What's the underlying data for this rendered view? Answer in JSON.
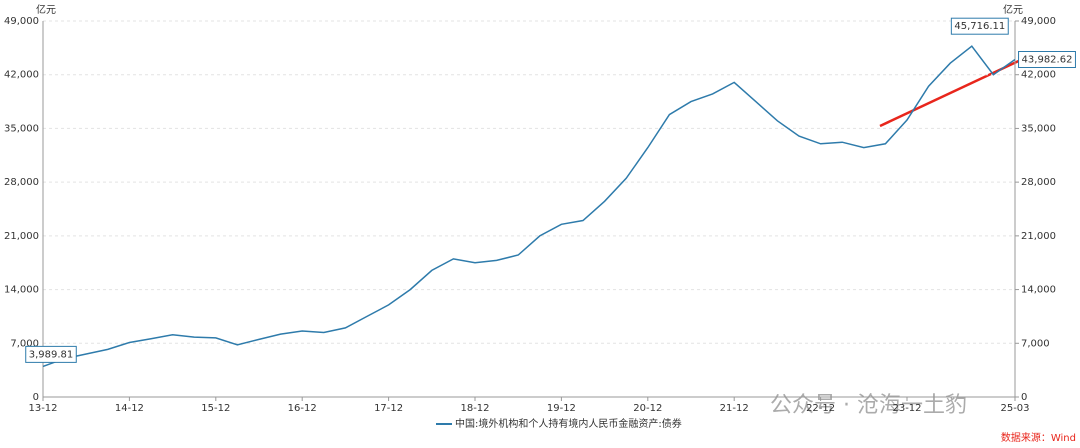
{
  "chart_data": {
    "type": "line",
    "y_unit": "亿元",
    "y2_unit": "亿元",
    "categories": [
      "13-12",
      null,
      null,
      null,
      "14-12",
      null,
      null,
      null,
      "15-12",
      null,
      null,
      null,
      "16-12",
      null,
      null,
      null,
      "17-12",
      null,
      null,
      null,
      "18-12",
      null,
      null,
      null,
      "19-12",
      null,
      null,
      null,
      "20-12",
      null,
      null,
      null,
      "21-12",
      null,
      null,
      null,
      "22-12",
      null,
      null,
      null,
      "23-12",
      null,
      null,
      null,
      null,
      "25-03"
    ],
    "series": [
      {
        "name": "中国:境外机构和个人持有境内人民币金融资产:债券",
        "color": "#2e7bab",
        "values": [
          3989.81,
          5000,
          5600,
          6200,
          7100,
          7600,
          8100,
          7800,
          7700,
          6800,
          7500,
          8200,
          8600,
          8400,
          9000,
          10500,
          12000,
          14000,
          16500,
          18000,
          17500,
          17800,
          18500,
          21000,
          22500,
          23000,
          25500,
          28500,
          32500,
          36800,
          38500,
          39500,
          41000,
          38500,
          36000,
          34000,
          33000,
          33200,
          32500,
          33000,
          36100,
          40500,
          43500,
          45716.11,
          42000,
          43982.62
        ],
        "value_labels": [
          "3,989.81",
          null,
          null,
          null,
          null,
          null,
          null,
          null,
          null,
          null,
          null,
          null,
          null,
          null,
          null,
          null,
          null,
          null,
          null,
          null,
          null,
          null,
          null,
          null,
          null,
          null,
          null,
          null,
          null,
          null,
          null,
          null,
          null,
          null,
          null,
          null,
          null,
          null,
          null,
          null,
          null,
          null,
          null,
          "45,716.11",
          null,
          "43,982.62"
        ]
      }
    ],
    "ylim": [
      0,
      49000
    ],
    "yticks": [
      0,
      {
        "value": 7000,
        "label": "7,000"
      },
      {
        "value": 14000,
        "label": "14,000"
      },
      {
        "value": 21000,
        "label": "21,000"
      },
      {
        "value": 28000,
        "label": "28,000"
      },
      {
        "value": 35000,
        "label": "35,000"
      },
      {
        "value": 42000,
        "label": "42,000"
      },
      {
        "value": 49000,
        "label": "49,000"
      }
    ],
    "y2lim": [
      0,
      49000
    ],
    "y2ticks": [
      0,
      {
        "value": 7000,
        "label": "7,000"
      },
      {
        "value": 14000,
        "label": "14,000"
      },
      {
        "value": 21000,
        "label": "21,000"
      },
      {
        "value": 28000,
        "label": "28,000"
      },
      {
        "value": 35000,
        "label": "35,000"
      },
      {
        "value": 42000,
        "label": "42,000"
      },
      {
        "value": 49000,
        "label": "49,000"
      }
    ],
    "grid": true,
    "source": "数据来源：Wind",
    "watermark": "公众号 · 沧海一土豹"
  }
}
